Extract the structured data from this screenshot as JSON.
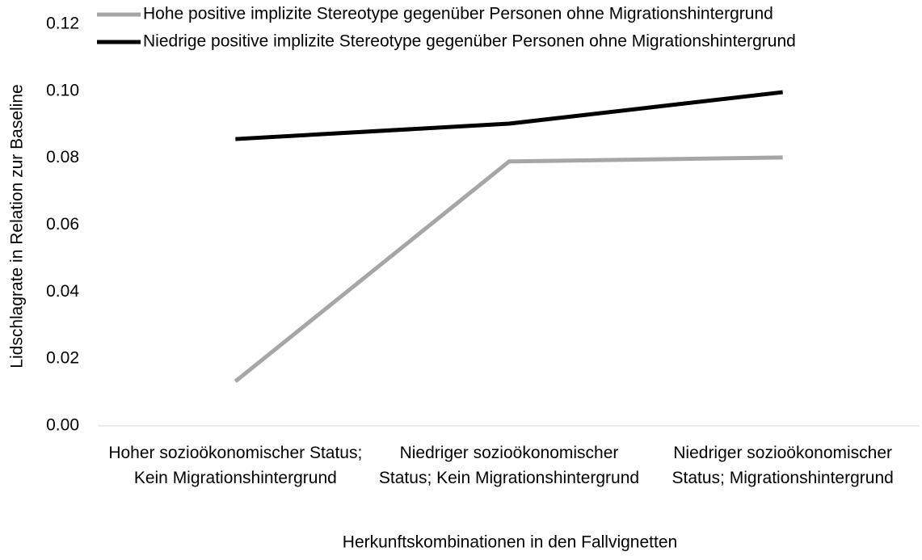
{
  "chart_data": {
    "type": "line",
    "x_label": "Herkunftskombinationen in den Fallvignetten",
    "y_label": "Lidschlagrate in Relation zur Baseline",
    "categories": [
      "Hoher sozioökonomischer Status; Kein Migrationshintergrund",
      "Niedriger sozioökonomischer Status; Kein Migrationshintergrund",
      "Niedriger sozioökonomischer Status; Migrationshintergrund"
    ],
    "series": [
      {
        "name": "Hohe positive implizite Stereotype gegenüber Personen ohne Migrationshintergrund",
        "color": "#a6a6a6",
        "values": [
          0.0133,
          0.079,
          0.0802
        ]
      },
      {
        "name": "Niedrige positive implizite Stereotype gegenüber Personen ohne Migrationshintergrund",
        "color": "#000000",
        "values": [
          0.0857,
          0.0903,
          0.0997
        ]
      }
    ],
    "ylim": [
      0,
      0.12
    ],
    "yticks": [
      {
        "value": 0,
        "label": "0.00"
      },
      0.02,
      0.04,
      0.06,
      0.08,
      {
        "value": 0.1,
        "label": "0.10"
      },
      0.12
    ],
    "legend": "top",
    "grid": false
  }
}
